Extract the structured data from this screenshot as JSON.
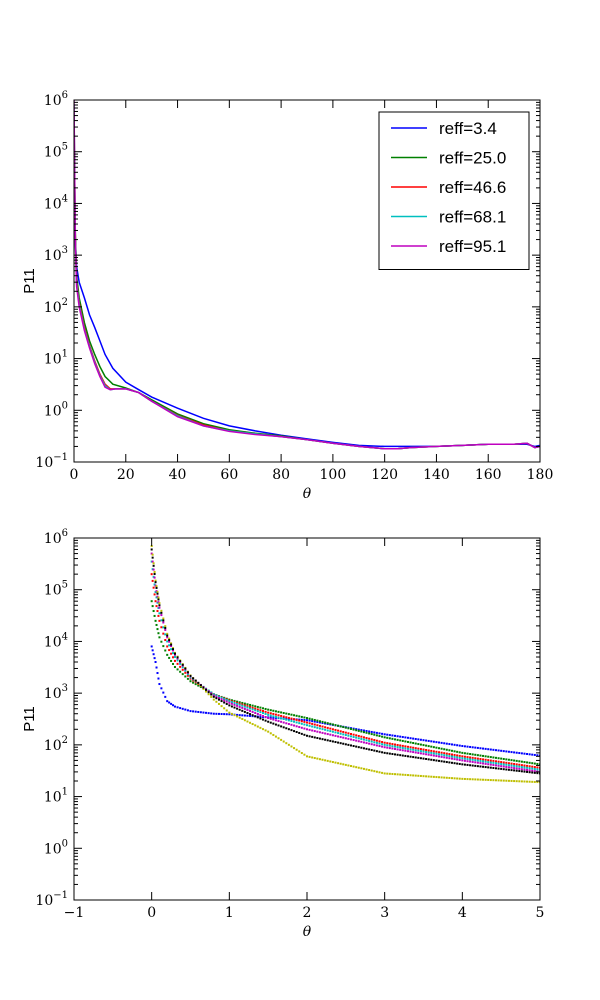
{
  "chart_data": [
    {
      "type": "line",
      "xlabel": "θ",
      "ylabel": "P11",
      "yscale": "log",
      "xlim": [
        0,
        180
      ],
      "ylim": [
        0.1,
        1000000
      ],
      "xticks": [
        "0",
        "20",
        "40",
        "60",
        "80",
        "100",
        "120",
        "140",
        "160",
        "180"
      ],
      "yticks": [
        {
          "base": "10",
          "exp": "6"
        },
        {
          "base": "10",
          "exp": "5"
        },
        {
          "base": "10",
          "exp": "4"
        },
        {
          "base": "10",
          "exp": "3"
        },
        {
          "base": "10",
          "exp": "2"
        },
        {
          "base": "10",
          "exp": "1"
        },
        {
          "base": "10",
          "exp": "0"
        },
        {
          "base": "10",
          "exp": "−1"
        }
      ],
      "legend_position": "top-right",
      "series": [
        {
          "name": "reff=3.4",
          "color": "#0000ff",
          "x": [
            0,
            0.5,
            1,
            2,
            4,
            6,
            8,
            10,
            12,
            15,
            20,
            25,
            30,
            40,
            50,
            60,
            70,
            80,
            90,
            100,
            110,
            120,
            125,
            130,
            140,
            150,
            160,
            170,
            175,
            178,
            180
          ],
          "y": [
            40000,
            2000,
            600,
            300,
            150,
            70,
            40,
            22,
            12,
            6.5,
            3.5,
            2.5,
            1.8,
            1.1,
            0.7,
            0.5,
            0.4,
            0.33,
            0.28,
            0.24,
            0.21,
            0.2,
            0.2,
            0.2,
            0.2,
            0.21,
            0.22,
            0.22,
            0.22,
            0.2,
            0.21
          ]
        },
        {
          "name": "reff=25.0",
          "color": "#008000",
          "x": [
            0,
            0.5,
            1,
            2,
            4,
            6,
            8,
            10,
            12,
            15,
            20,
            25,
            30,
            40,
            50,
            60,
            70,
            80,
            90,
            100,
            110,
            120,
            125,
            130,
            140,
            150,
            160,
            170,
            175,
            178,
            180
          ],
          "y": [
            300000,
            3000,
            400,
            150,
            50,
            22,
            12,
            7,
            4.5,
            3.2,
            2.7,
            2.2,
            1.6,
            0.85,
            0.55,
            0.42,
            0.36,
            0.32,
            0.27,
            0.23,
            0.2,
            0.18,
            0.18,
            0.19,
            0.2,
            0.21,
            0.22,
            0.22,
            0.23,
            0.19,
            0.2
          ]
        },
        {
          "name": "reff=46.6",
          "color": "#ff0000",
          "x": [
            0,
            0.5,
            1,
            2,
            4,
            6,
            8,
            10,
            12,
            14,
            16,
            20,
            25,
            30,
            40,
            50,
            60,
            70,
            80,
            90,
            100,
            110,
            120,
            125,
            130,
            140,
            150,
            160,
            170,
            175,
            178,
            180
          ],
          "y": [
            600000,
            2500,
            300,
            120,
            40,
            18,
            9,
            5,
            3.2,
            2.6,
            2.6,
            2.6,
            2.2,
            1.5,
            0.8,
            0.52,
            0.4,
            0.35,
            0.31,
            0.27,
            0.23,
            0.2,
            0.18,
            0.18,
            0.19,
            0.2,
            0.21,
            0.22,
            0.22,
            0.23,
            0.19,
            0.2
          ]
        },
        {
          "name": "reff=68.1",
          "color": "#00bfbf",
          "x": [
            0,
            0.5,
            1,
            2,
            4,
            6,
            8,
            10,
            12,
            14,
            16,
            20,
            25,
            30,
            40,
            50,
            60,
            70,
            80,
            90,
            100,
            110,
            120,
            125,
            130,
            140,
            150,
            160,
            170,
            175,
            178,
            180
          ],
          "y": [
            800000,
            2200,
            280,
            110,
            37,
            17,
            8.5,
            4.7,
            3,
            2.5,
            2.6,
            2.6,
            2.2,
            1.5,
            0.78,
            0.5,
            0.4,
            0.35,
            0.31,
            0.27,
            0.23,
            0.2,
            0.18,
            0.18,
            0.19,
            0.2,
            0.21,
            0.22,
            0.22,
            0.23,
            0.19,
            0.2
          ]
        },
        {
          "name": "reff=95.1",
          "color": "#bf00bf",
          "x": [
            0,
            0.5,
            1,
            2,
            4,
            6,
            8,
            10,
            12,
            14,
            16,
            20,
            25,
            30,
            40,
            50,
            60,
            70,
            80,
            90,
            100,
            110,
            120,
            125,
            130,
            140,
            150,
            160,
            170,
            175,
            178,
            180
          ],
          "y": [
            1000000,
            2000,
            250,
            100,
            35,
            16,
            8,
            4.5,
            2.8,
            2.5,
            2.6,
            2.6,
            2.2,
            1.5,
            0.75,
            0.5,
            0.39,
            0.34,
            0.31,
            0.27,
            0.23,
            0.2,
            0.18,
            0.18,
            0.19,
            0.2,
            0.21,
            0.22,
            0.22,
            0.23,
            0.19,
            0.2
          ]
        }
      ]
    },
    {
      "type": "scatter",
      "xlabel": "θ",
      "ylabel": "P11",
      "yscale": "log",
      "xlim": [
        -1,
        5
      ],
      "ylim": [
        0.1,
        1000000
      ],
      "xticks": [
        "−1",
        "0",
        "1",
        "2",
        "3",
        "4",
        "5"
      ],
      "yticks": [
        {
          "base": "10",
          "exp": "6"
        },
        {
          "base": "10",
          "exp": "5"
        },
        {
          "base": "10",
          "exp": "4"
        },
        {
          "base": "10",
          "exp": "3"
        },
        {
          "base": "10",
          "exp": "2"
        },
        {
          "base": "10",
          "exp": "1"
        },
        {
          "base": "10",
          "exp": "0"
        },
        {
          "base": "10",
          "exp": "−1"
        }
      ],
      "series": [
        {
          "color": "#0000ff",
          "x": [
            0,
            0.05,
            0.1,
            0.2,
            0.3,
            0.5,
            0.8,
            1,
            1.5,
            2,
            3,
            4,
            5
          ],
          "y": [
            8000,
            4000,
            1500,
            700,
            550,
            450,
            400,
            390,
            340,
            300,
            160,
            95,
            62
          ]
        },
        {
          "color": "#008000",
          "x": [
            0,
            0.05,
            0.1,
            0.2,
            0.3,
            0.5,
            0.8,
            1,
            1.5,
            2,
            3,
            4,
            5
          ],
          "y": [
            60000,
            25000,
            12000,
            5500,
            3200,
            1700,
            950,
            750,
            480,
            330,
            140,
            70,
            42
          ]
        },
        {
          "color": "#ff0000",
          "x": [
            0,
            0.05,
            0.1,
            0.2,
            0.3,
            0.5,
            0.8,
            1,
            1.5,
            2,
            3,
            4,
            5
          ],
          "y": [
            200000,
            60000,
            25000,
            8000,
            4200,
            1900,
            950,
            720,
            420,
            270,
            110,
            60,
            36
          ]
        },
        {
          "color": "#00bfbf",
          "x": [
            0,
            0.05,
            0.1,
            0.2,
            0.3,
            0.5,
            0.8,
            1,
            1.5,
            2,
            3,
            4,
            5
          ],
          "y": [
            350000,
            90000,
            35000,
            10000,
            5000,
            2000,
            950,
            700,
            380,
            240,
            100,
            55,
            33
          ]
        },
        {
          "color": "#bf00bf",
          "x": [
            0,
            0.05,
            0.1,
            0.2,
            0.3,
            0.5,
            0.8,
            1,
            1.5,
            2,
            3,
            4,
            5
          ],
          "y": [
            500000,
            120000,
            45000,
            12000,
            5500,
            2100,
            900,
            650,
            330,
            200,
            90,
            50,
            30
          ]
        },
        {
          "color": "#bfbf00",
          "x": [
            0,
            0.05,
            0.1,
            0.2,
            0.3,
            0.5,
            0.8,
            1,
            1.5,
            2,
            3,
            4,
            5
          ],
          "y": [
            700000,
            150000,
            55000,
            14000,
            6000,
            2200,
            750,
            420,
            180,
            60,
            28,
            22,
            19
          ]
        },
        {
          "color": "#000000",
          "x": [
            0,
            0.05,
            0.1,
            0.2,
            0.3,
            0.5,
            0.8,
            1,
            1.5,
            2,
            3,
            4,
            5
          ],
          "y": [
            600000,
            140000,
            50000,
            13000,
            5800,
            2150,
            850,
            580,
            280,
            150,
            70,
            42,
            28
          ]
        }
      ]
    }
  ]
}
